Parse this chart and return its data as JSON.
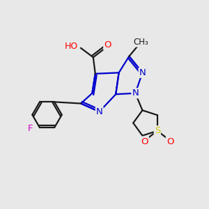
{
  "bg_color": "#e8e8e8",
  "bond_color": "#1a1a1a",
  "ring_color": "#0000cc",
  "N_color": "#0000cc",
  "O_color": "#ff0000",
  "F_color": "#cc00cc",
  "S_color": "#cccc00",
  "lw": 1.6,
  "fs": 9.5,
  "xlim": [
    0,
    10
  ],
  "ylim": [
    0,
    10
  ]
}
